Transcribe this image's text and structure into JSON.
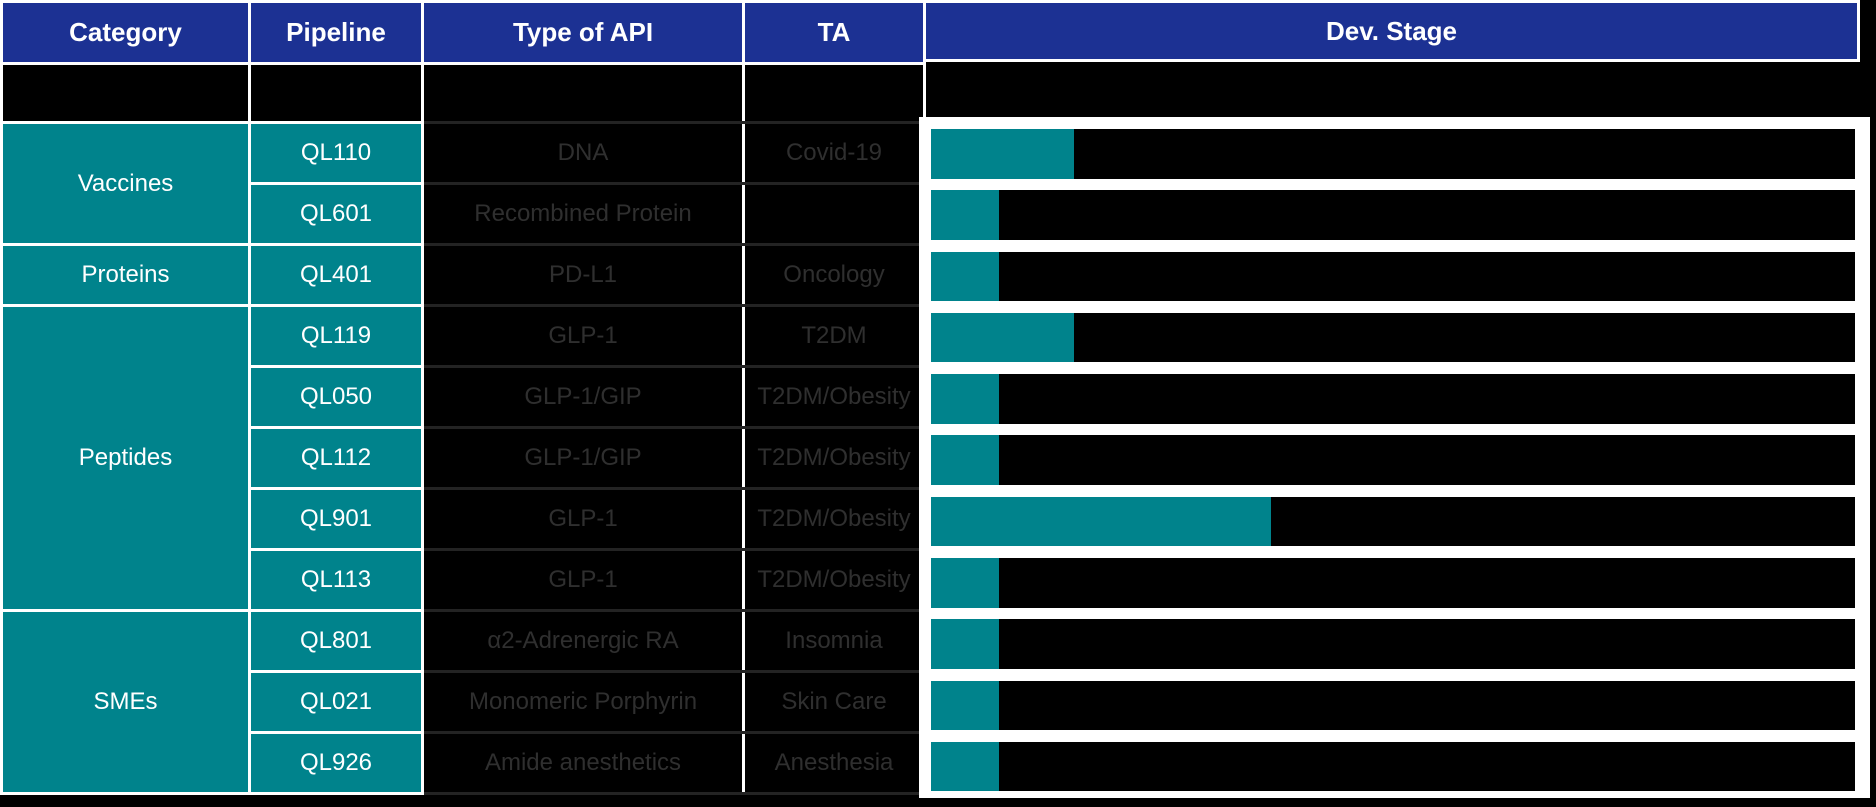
{
  "table": {
    "headers": [
      "Category",
      "Pipeline",
      "Type of API",
      "TA",
      "Dev. Stage"
    ],
    "groups": [
      {
        "label": "Vaccines",
        "span": 2
      },
      {
        "label": "Proteins",
        "span": 1
      },
      {
        "label": "Peptides",
        "span": 5
      },
      {
        "label": "SMEs",
        "span": 3
      }
    ],
    "rows": [
      {
        "pipeline": "QL110",
        "api": "DNA",
        "ta": "Covid-19",
        "dev_pct": 15.5
      },
      {
        "pipeline": "QL601",
        "api": "Recombined Protein",
        "ta": "",
        "dev_pct": 7.4
      },
      {
        "pipeline": "QL401",
        "api": "PD-L1",
        "ta": "Oncology",
        "dev_pct": 7.4
      },
      {
        "pipeline": "QL119",
        "api": "GLP-1",
        "ta": "T2DM",
        "dev_pct": 15.5
      },
      {
        "pipeline": "QL050",
        "api": "GLP-1/GIP",
        "ta": "T2DM/Obesity",
        "dev_pct": 7.4
      },
      {
        "pipeline": "QL112",
        "api": "GLP-1/GIP",
        "ta": "T2DM/Obesity",
        "dev_pct": 7.4
      },
      {
        "pipeline": "QL901",
        "api": "GLP-1",
        "ta": "T2DM/Obesity",
        "dev_pct": 36.8
      },
      {
        "pipeline": "QL113",
        "api": "GLP-1",
        "ta": "T2DM/Obesity",
        "dev_pct": 7.4
      },
      {
        "pipeline": "QL801",
        "api": "α2-Adrenergic RA",
        "ta": "Insomnia",
        "dev_pct": 7.4
      },
      {
        "pipeline": "QL021",
        "api": "Monomeric Porphyrin",
        "ta": "Skin Care",
        "dev_pct": 7.4
      },
      {
        "pipeline": "QL926",
        "api": "Amide anesthetics",
        "ta": "Anesthesia",
        "dev_pct": 7.4
      }
    ]
  },
  "chart_data": {
    "type": "bar",
    "orientation": "horizontal",
    "title": "Dev. Stage",
    "xlabel": "",
    "ylabel": "",
    "categories": [
      "QL110",
      "QL601",
      "QL401",
      "QL119",
      "QL050",
      "QL112",
      "QL901",
      "QL113",
      "QL801",
      "QL021",
      "QL926"
    ],
    "values": [
      15.5,
      7.4,
      7.4,
      15.5,
      7.4,
      7.4,
      36.8,
      7.4,
      7.4,
      7.4,
      7.4
    ],
    "xlim": [
      0,
      100
    ],
    "grid": false,
    "legend": false,
    "bar_color": "#00838C",
    "track_color": "#000000",
    "panel_color": "#FFFFFF"
  },
  "colors": {
    "header_blue": "#1C3193",
    "teal": "#00838C",
    "cell_black": "#000000",
    "muted_text": "#2F2F2F",
    "border_white": "#FFFFFF"
  }
}
